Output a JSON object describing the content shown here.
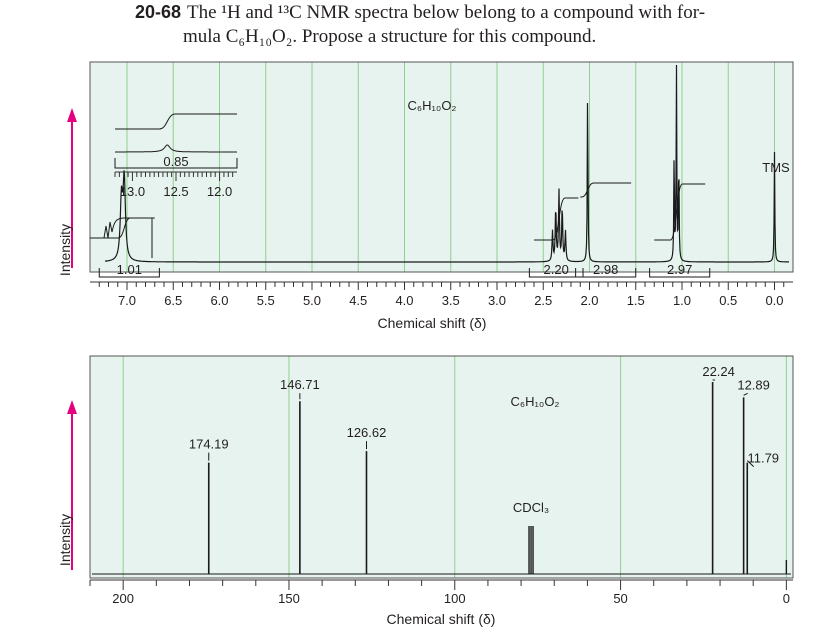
{
  "problem": {
    "number": "20-68",
    "line1": "The ¹H and ¹³C NMR spectra below belong to a compound with for-",
    "line2": "mula C₆H₁₀O₂. Propose a structure for this compound."
  },
  "colors": {
    "panel_bg": "#e6f3ee",
    "grid": "#8fd18f",
    "arrow": "#e4007f",
    "tms": "#e4007f",
    "trace": "#1a1a1a"
  },
  "chart_data": [
    {
      "type": "line",
      "title": "C₆H₁₀O₂",
      "xlabel": "Chemical shift (δ)",
      "ylabel": "Intensity",
      "xlim": [
        7.4,
        -0.2
      ],
      "x_ticks": [
        "7.0",
        "6.5",
        "6.0",
        "5.5",
        "5.0",
        "4.5",
        "4.0",
        "3.5",
        "3.0",
        "2.5",
        "2.0",
        "1.5",
        "1.0",
        "0.5",
        "0.0"
      ],
      "peaks": [
        {
          "shift": 7.03,
          "multiplicity": "singlet-broad",
          "integral": "1.01"
        },
        {
          "shift": 2.33,
          "multiplicity": "multiplet",
          "integral": "2.20"
        },
        {
          "shift": 2.02,
          "multiplicity": "singlet",
          "integral": "2.98"
        },
        {
          "shift": 1.06,
          "multiplicity": "triplet",
          "integral": "2.97"
        },
        {
          "shift": 0.0,
          "multiplicity": "singlet",
          "label": "TMS"
        }
      ],
      "inset": {
        "x_ticks": [
          "13.0",
          "12.5",
          "12.0"
        ],
        "peak_shift": 12.6,
        "integral": "0.85"
      }
    },
    {
      "type": "bar",
      "title": "C₆H₁₀O₂",
      "xlabel": "Chemical shift (δ)",
      "ylabel": "Intensity",
      "xlim": [
        210,
        -2
      ],
      "x_ticks": [
        "200",
        "150",
        "100",
        "50",
        "0"
      ],
      "peaks": [
        {
          "shift": 174.19,
          "label": "174.19",
          "height": 0.58
        },
        {
          "shift": 146.71,
          "label": "146.71",
          "height": 0.9
        },
        {
          "shift": 126.62,
          "label": "126.62",
          "height": 0.64
        },
        {
          "shift": 77.0,
          "label": "CDCl₃",
          "height": 0.25
        },
        {
          "shift": 22.24,
          "label": "22.24",
          "height": 1.0
        },
        {
          "shift": 12.89,
          "label": "12.89",
          "height": 0.92
        },
        {
          "shift": 11.79,
          "label": "11.79",
          "height": 0.58
        }
      ]
    }
  ]
}
